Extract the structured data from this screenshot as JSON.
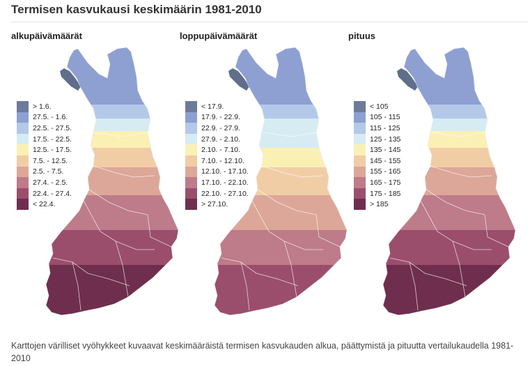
{
  "page": {
    "title": "Termisen kasvukausi keskimäärin 1981-2010",
    "caption": "Karttojen värilliset vyöhykkeet kuvaavat keskimääräistä termisen kasvukauden alkua, päättymistä ja pituutta vertailukaudella 1981-2010"
  },
  "colors": {
    "palette": [
      "#6c7a9c",
      "#8e9fd2",
      "#b4c9e9",
      "#d6ecf2",
      "#fbf0b4",
      "#f1cda6",
      "#dca798",
      "#be7b8a",
      "#9b4e6c",
      "#6f2e4d"
    ],
    "lake": "#5f6e8a",
    "border": "#ffffff"
  },
  "maps": [
    {
      "heading": "alkupäivämäärät",
      "legend": [
        {
          "label": "> 1.6."
        },
        {
          "label": "27.5. - 1.6."
        },
        {
          "label": "22.5. - 27.5."
        },
        {
          "label": "17.5. - 22.5."
        },
        {
          "label": "12.5. - 17.5."
        },
        {
          "label": "7.5. - 12.5."
        },
        {
          "label": "2.5. - 7.5."
        },
        {
          "label": "27.4. - 2.5."
        },
        {
          "label": "22.4. - 27.4."
        },
        {
          "label": "< 22.4."
        }
      ],
      "zones": [
        1,
        1,
        2,
        3,
        4,
        5,
        6,
        7,
        8,
        9
      ]
    },
    {
      "heading": "loppupäivämäärät",
      "legend": [
        {
          "label": "< 17.9."
        },
        {
          "label": "17.9. - 22.9."
        },
        {
          "label": "22.9. - 27.9."
        },
        {
          "label": "27.9. - 2.10."
        },
        {
          "label": "2.10. - 7.10."
        },
        {
          "label": "7.10. - 12.10."
        },
        {
          "label": "12.10. - 17.10."
        },
        {
          "label": "17.10. - 22.10."
        },
        {
          "label": "22.10. - 27.10."
        },
        {
          "label": "> 27.10."
        }
      ],
      "zones": [
        1,
        1,
        2,
        3,
        3,
        4,
        5,
        6,
        7,
        8
      ]
    },
    {
      "heading": "pituus",
      "legend": [
        {
          "label": "< 105"
        },
        {
          "label": "105 - 115"
        },
        {
          "label": "115 - 125"
        },
        {
          "label": "125 - 135"
        },
        {
          "label": "135 - 145"
        },
        {
          "label": "145 - 155"
        },
        {
          "label": "155 - 165"
        },
        {
          "label": "165 - 175"
        },
        {
          "label": "175 - 185"
        },
        {
          "label": "> 185"
        }
      ],
      "zones": [
        1,
        1,
        2,
        3,
        4,
        5,
        6,
        7,
        8,
        9
      ]
    }
  ]
}
